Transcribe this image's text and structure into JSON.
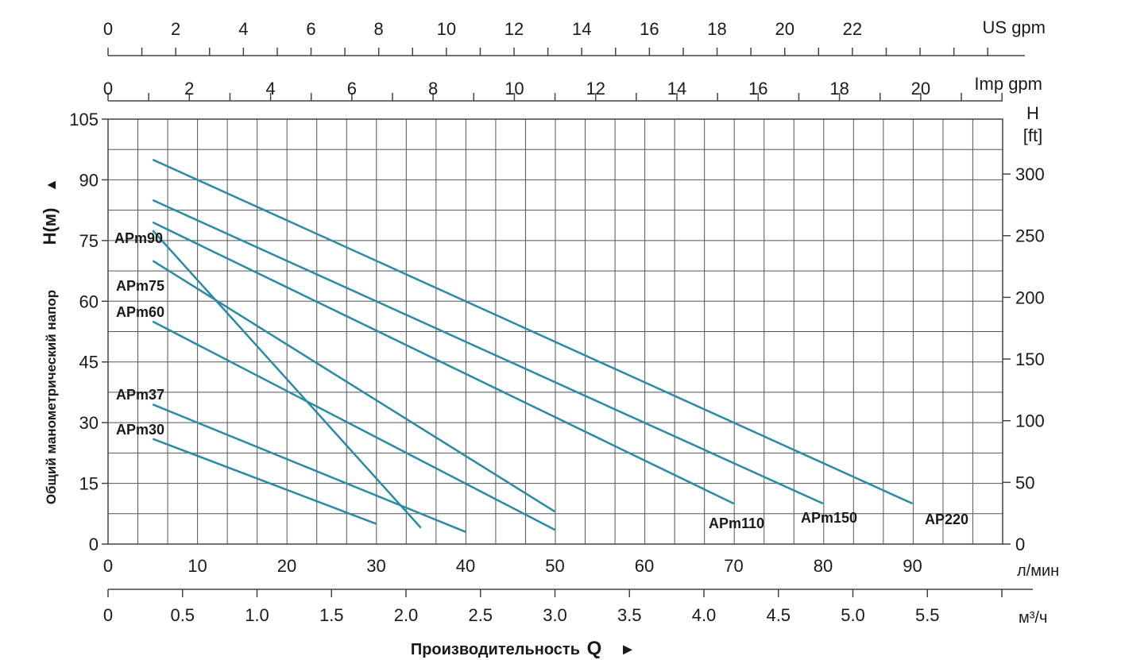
{
  "colors": {
    "series": "#2b8aa6",
    "grid": "#555555",
    "axis": "#444444",
    "text": "#1a1a1a"
  },
  "chart_data": {
    "type": "line",
    "xlim": [
      0,
      100
    ],
    "ylim": [
      0,
      105
    ],
    "grid": true,
    "x_unit_label": "л/мин",
    "x_ticks": [
      "0",
      "10",
      "20",
      "30",
      "40",
      "50",
      "60",
      "70",
      "80",
      "90"
    ],
    "y_ticks": [
      "0",
      "15",
      "30",
      "45",
      "60",
      "75",
      "90",
      "105"
    ],
    "y_axis_title_rotated": "Общий манометрический напор",
    "y_axis_symbol": "H(м)",
    "y_axis_arrow": "▲",
    "right_axis": {
      "title_line1": "H",
      "title_line2": "[ft]",
      "ticks": [
        "0",
        "50",
        "100",
        "150",
        "200",
        "250",
        "300"
      ]
    },
    "top_axis_us": {
      "label": "US gpm",
      "ticks": [
        "0",
        "2",
        "4",
        "6",
        "8",
        "10",
        "12",
        "14",
        "16",
        "18",
        "20",
        "22"
      ]
    },
    "top_axis_imp": {
      "label": "Imp gpm",
      "ticks": [
        "0",
        "2",
        "4",
        "6",
        "8",
        "10",
        "12",
        "14",
        "16",
        "18",
        "20"
      ]
    },
    "bottom_axis_m3h": {
      "label": "м³/ч",
      "ticks": [
        "0",
        "0.5",
        "1.0",
        "1.5",
        "2.0",
        "2.5",
        "3.0",
        "3.5",
        "4.0",
        "4.5",
        "5.0",
        "5.5"
      ]
    },
    "x_title_text": "Производительность",
    "x_title_symbol": "Q",
    "x_title_arrow": "►",
    "series": [
      {
        "name": "APm30",
        "x": [
          5,
          30
        ],
        "y": [
          26,
          5
        ]
      },
      {
        "name": "APm37",
        "x": [
          5,
          40
        ],
        "y": [
          34.5,
          3
        ]
      },
      {
        "name": "APm60",
        "x": [
          5,
          50
        ],
        "y": [
          55,
          3.5
        ]
      },
      {
        "name": "APm75",
        "x": [
          5,
          50
        ],
        "y": [
          70,
          8
        ]
      },
      {
        "name": "APm90",
        "x": [
          5,
          35
        ],
        "y": [
          77.5,
          4
        ]
      },
      {
        "name": "APm110",
        "x": [
          5,
          70
        ],
        "y": [
          79.5,
          10
        ]
      },
      {
        "name": "APm150",
        "x": [
          5,
          80
        ],
        "y": [
          85,
          10
        ]
      },
      {
        "name": "AP220",
        "x": [
          5,
          90
        ],
        "y": [
          95,
          10
        ]
      }
    ]
  }
}
